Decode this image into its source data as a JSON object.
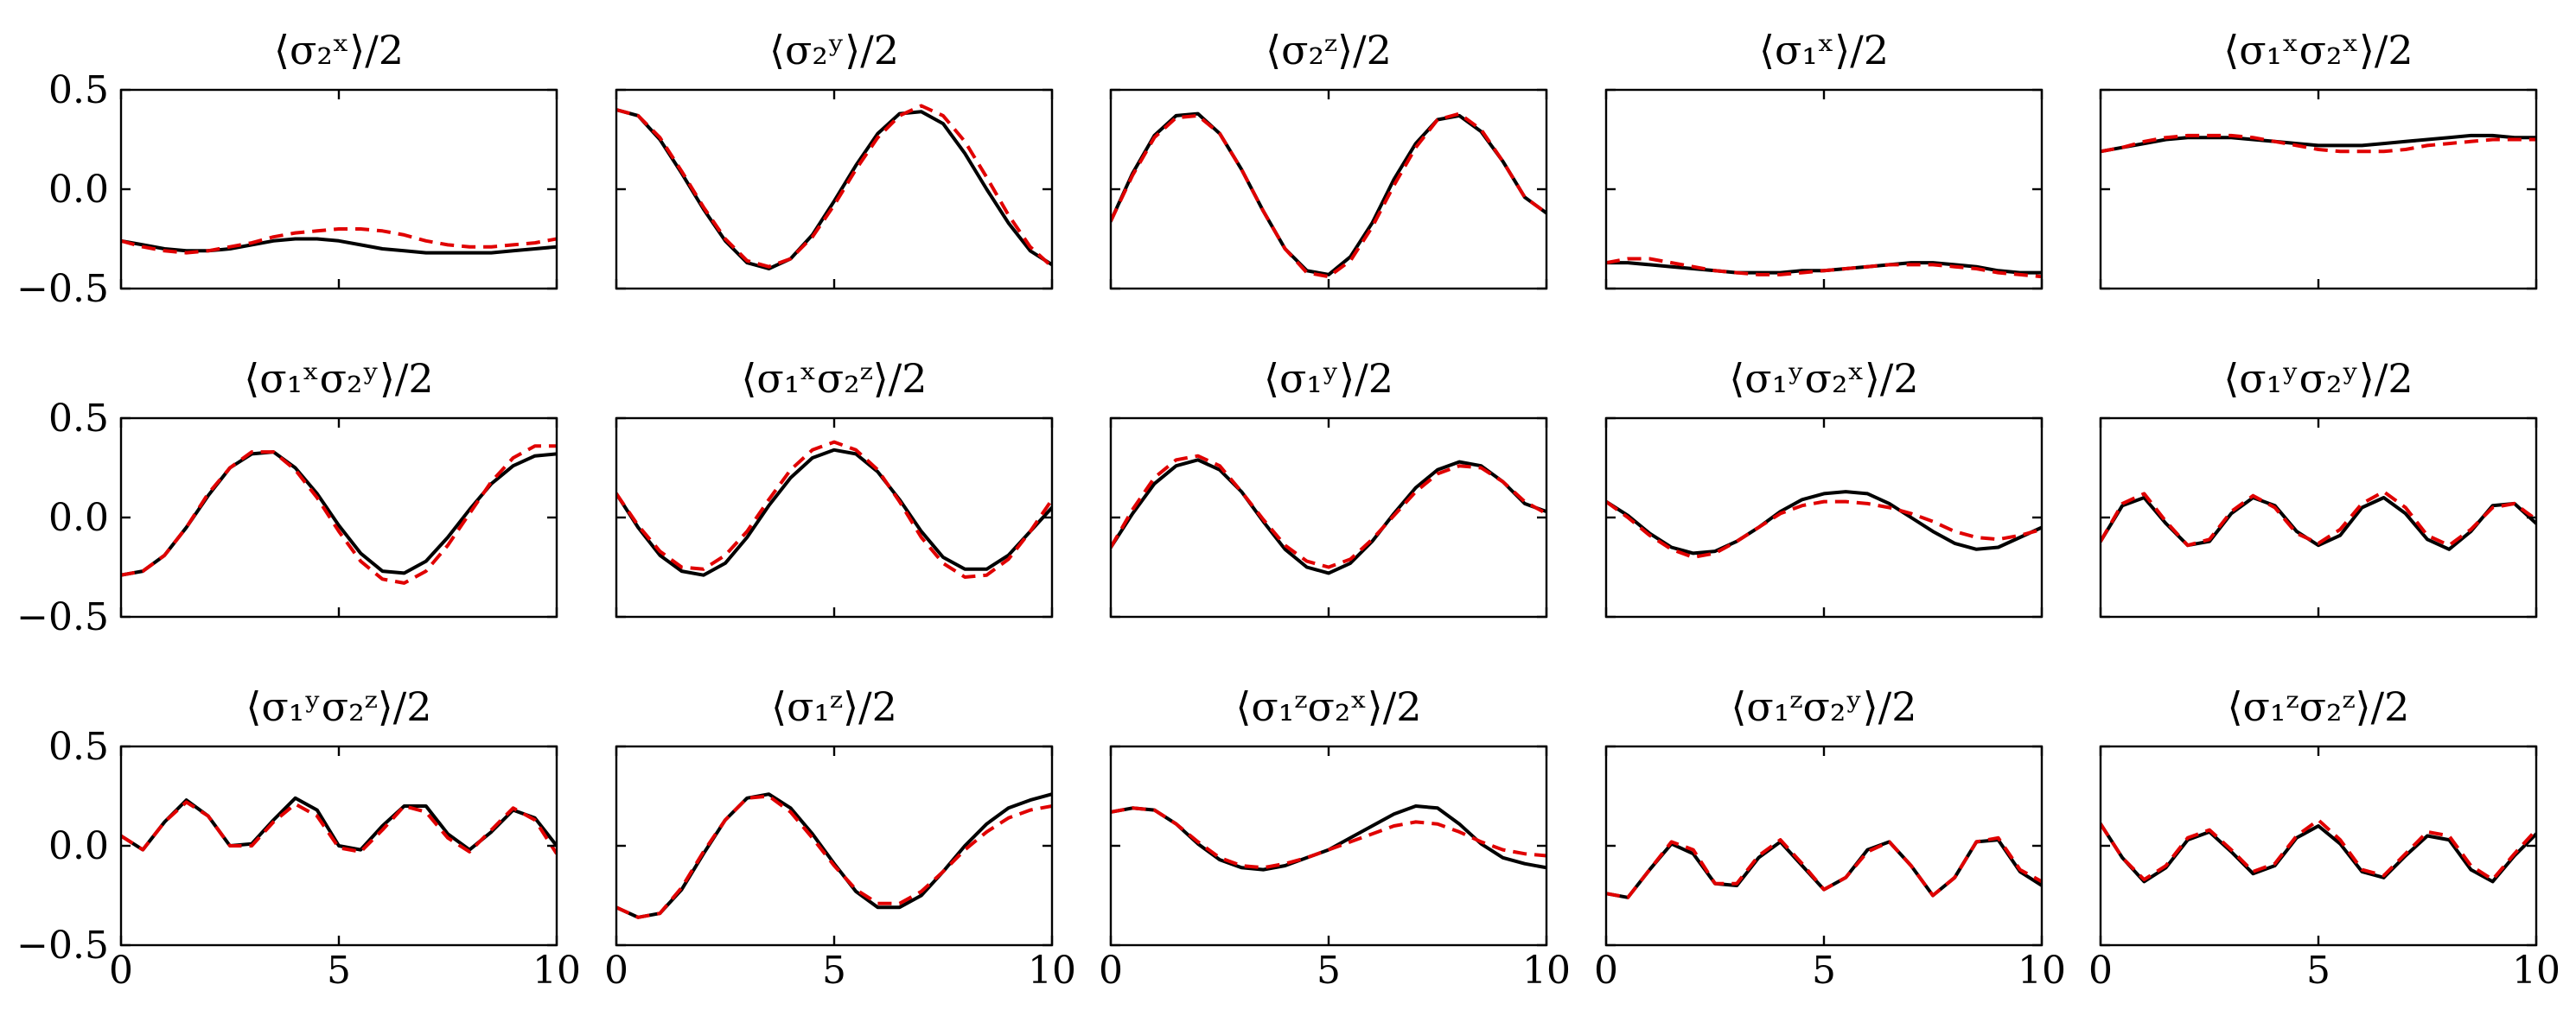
{
  "chart_data": {
    "type": "line",
    "grid": false,
    "xlim": [
      0,
      10
    ],
    "ylim": [
      -0.5,
      0.5
    ],
    "xticks": [
      0,
      5,
      10
    ],
    "yticks": [
      -0.5,
      0.0,
      0.5
    ],
    "xtick_labels": [
      "0",
      "5",
      "10"
    ],
    "ytick_labels": [
      "−0.5",
      "0.0",
      "0.5"
    ],
    "series_styles": [
      {
        "color": "#000000",
        "dash": "solid"
      },
      {
        "color": "#e00000",
        "dash": "dashed"
      }
    ],
    "x": [
      0,
      0.5,
      1,
      1.5,
      2,
      2.5,
      3,
      3.5,
      4,
      4.5,
      5,
      5.5,
      6,
      6.5,
      7,
      7.5,
      8,
      8.5,
      9,
      9.5,
      10
    ],
    "panels": [
      {
        "title": "⟨σ₂ˣ⟩/2",
        "series": [
          {
            "values": [
              -0.26,
              -0.28,
              -0.3,
              -0.31,
              -0.31,
              -0.3,
              -0.28,
              -0.26,
              -0.25,
              -0.25,
              -0.26,
              -0.28,
              -0.3,
              -0.31,
              -0.32,
              -0.32,
              -0.32,
              -0.32,
              -0.31,
              -0.3,
              -0.29
            ]
          },
          {
            "values": [
              -0.26,
              -0.29,
              -0.31,
              -0.32,
              -0.31,
              -0.29,
              -0.27,
              -0.24,
              -0.22,
              -0.21,
              -0.2,
              -0.2,
              -0.21,
              -0.23,
              -0.26,
              -0.28,
              -0.29,
              -0.29,
              -0.28,
              -0.27,
              -0.25
            ]
          }
        ]
      },
      {
        "title": "⟨σ₂ʸ⟩/2",
        "series": [
          {
            "values": [
              0.4,
              0.37,
              0.25,
              0.08,
              -0.1,
              -0.26,
              -0.37,
              -0.4,
              -0.35,
              -0.23,
              -0.06,
              0.12,
              0.28,
              0.38,
              0.39,
              0.33,
              0.18,
              0.0,
              -0.17,
              -0.31,
              -0.38
            ]
          },
          {
            "values": [
              0.4,
              0.37,
              0.26,
              0.09,
              -0.09,
              -0.25,
              -0.36,
              -0.39,
              -0.35,
              -0.24,
              -0.08,
              0.1,
              0.26,
              0.37,
              0.42,
              0.37,
              0.24,
              0.06,
              -0.13,
              -0.29,
              -0.39
            ]
          }
        ]
      },
      {
        "title": "⟨σ₂ᶻ⟩/2",
        "series": [
          {
            "values": [
              -0.16,
              0.08,
              0.27,
              0.37,
              0.38,
              0.28,
              0.1,
              -0.11,
              -0.3,
              -0.41,
              -0.43,
              -0.34,
              -0.17,
              0.05,
              0.23,
              0.35,
              0.37,
              0.29,
              0.14,
              -0.04,
              -0.12
            ]
          },
          {
            "values": [
              -0.16,
              0.07,
              0.26,
              0.36,
              0.37,
              0.28,
              0.1,
              -0.11,
              -0.3,
              -0.42,
              -0.44,
              -0.36,
              -0.19,
              0.02,
              0.21,
              0.35,
              0.38,
              0.3,
              0.14,
              -0.04,
              -0.12
            ]
          }
        ]
      },
      {
        "title": "⟨σ₁ˣ⟩/2",
        "series": [
          {
            "values": [
              -0.37,
              -0.37,
              -0.38,
              -0.39,
              -0.4,
              -0.41,
              -0.42,
              -0.42,
              -0.42,
              -0.41,
              -0.41,
              -0.4,
              -0.39,
              -0.38,
              -0.37,
              -0.37,
              -0.38,
              -0.39,
              -0.41,
              -0.42,
              -0.42
            ]
          },
          {
            "values": [
              -0.37,
              -0.35,
              -0.35,
              -0.37,
              -0.39,
              -0.41,
              -0.42,
              -0.43,
              -0.43,
              -0.42,
              -0.41,
              -0.4,
              -0.39,
              -0.38,
              -0.38,
              -0.38,
              -0.39,
              -0.4,
              -0.42,
              -0.43,
              -0.44
            ]
          }
        ]
      },
      {
        "title": "⟨σ₁ˣσ₂ˣ⟩/2",
        "series": [
          {
            "values": [
              0.19,
              0.21,
              0.23,
              0.25,
              0.26,
              0.26,
              0.26,
              0.25,
              0.24,
              0.23,
              0.22,
              0.22,
              0.22,
              0.23,
              0.24,
              0.25,
              0.26,
              0.27,
              0.27,
              0.26,
              0.26
            ]
          },
          {
            "values": [
              0.19,
              0.21,
              0.24,
              0.26,
              0.27,
              0.27,
              0.27,
              0.26,
              0.24,
              0.22,
              0.2,
              0.19,
              0.19,
              0.19,
              0.2,
              0.22,
              0.23,
              0.24,
              0.25,
              0.25,
              0.25
            ]
          }
        ]
      },
      {
        "title": "⟨σ₁ˣσ₂ʸ⟩/2",
        "series": [
          {
            "values": [
              -0.29,
              -0.27,
              -0.19,
              -0.05,
              0.11,
              0.25,
              0.32,
              0.33,
              0.25,
              0.12,
              -0.04,
              -0.18,
              -0.27,
              -0.28,
              -0.22,
              -0.1,
              0.04,
              0.17,
              0.26,
              0.31,
              0.32
            ]
          },
          {
            "values": [
              -0.29,
              -0.27,
              -0.19,
              -0.05,
              0.12,
              0.25,
              0.33,
              0.33,
              0.24,
              0.1,
              -0.07,
              -0.22,
              -0.31,
              -0.33,
              -0.27,
              -0.14,
              0.02,
              0.18,
              0.3,
              0.36,
              0.36
            ]
          }
        ]
      },
      {
        "title": "⟨σ₁ˣσ₂ᶻ⟩/2",
        "series": [
          {
            "values": [
              0.12,
              -0.05,
              -0.19,
              -0.27,
              -0.29,
              -0.23,
              -0.1,
              0.06,
              0.2,
              0.3,
              0.34,
              0.32,
              0.23,
              0.09,
              -0.07,
              -0.2,
              -0.26,
              -0.26,
              -0.19,
              -0.07,
              0.05
            ]
          },
          {
            "values": [
              0.12,
              -0.04,
              -0.17,
              -0.25,
              -0.26,
              -0.19,
              -0.07,
              0.09,
              0.24,
              0.34,
              0.38,
              0.34,
              0.24,
              0.08,
              -0.1,
              -0.23,
              -0.3,
              -0.29,
              -0.21,
              -0.07,
              0.09
            ]
          }
        ]
      },
      {
        "title": "⟨σ₁ʸ⟩/2",
        "series": [
          {
            "values": [
              -0.15,
              0.02,
              0.17,
              0.26,
              0.29,
              0.24,
              0.13,
              -0.02,
              -0.16,
              -0.25,
              -0.28,
              -0.23,
              -0.12,
              0.02,
              0.15,
              0.24,
              0.28,
              0.26,
              0.18,
              0.07,
              0.03
            ]
          },
          {
            "values": [
              -0.15,
              0.04,
              0.2,
              0.29,
              0.31,
              0.26,
              0.13,
              -0.01,
              -0.14,
              -0.22,
              -0.25,
              -0.21,
              -0.11,
              0.01,
              0.13,
              0.22,
              0.26,
              0.25,
              0.18,
              0.08,
              0.02
            ]
          }
        ]
      },
      {
        "title": "⟨σ₁ʸσ₂ˣ⟩/2",
        "series": [
          {
            "values": [
              0.08,
              0.01,
              -0.08,
              -0.15,
              -0.18,
              -0.17,
              -0.12,
              -0.05,
              0.03,
              0.09,
              0.12,
              0.13,
              0.12,
              0.07,
              0.0,
              -0.07,
              -0.13,
              -0.16,
              -0.15,
              -0.1,
              -0.05
            ]
          },
          {
            "values": [
              0.08,
              0.0,
              -0.09,
              -0.16,
              -0.2,
              -0.18,
              -0.12,
              -0.05,
              0.02,
              0.06,
              0.08,
              0.08,
              0.07,
              0.05,
              0.02,
              -0.02,
              -0.07,
              -0.1,
              -0.11,
              -0.09,
              -0.06
            ]
          }
        ]
      },
      {
        "title": "⟨σ₁ʸσ₂ʸ⟩/2",
        "series": [
          {
            "values": [
              -0.12,
              0.06,
              0.1,
              -0.03,
              -0.14,
              -0.12,
              0.02,
              0.1,
              0.06,
              -0.07,
              -0.14,
              -0.09,
              0.05,
              0.1,
              0.02,
              -0.11,
              -0.16,
              -0.07,
              0.06,
              0.07,
              -0.03
            ]
          },
          {
            "values": [
              -0.12,
              0.07,
              0.12,
              -0.02,
              -0.14,
              -0.11,
              0.03,
              0.11,
              0.05,
              -0.08,
              -0.13,
              -0.06,
              0.07,
              0.13,
              0.05,
              -0.09,
              -0.14,
              -0.06,
              0.05,
              0.07,
              -0.01
            ]
          }
        ]
      },
      {
        "title": "⟨σ₁ʸσ₂ᶻ⟩/2",
        "series": [
          {
            "values": [
              0.05,
              -0.02,
              0.12,
              0.23,
              0.15,
              0.0,
              0.01,
              0.13,
              0.24,
              0.18,
              0.0,
              -0.02,
              0.1,
              0.2,
              0.2,
              0.06,
              -0.02,
              0.07,
              0.18,
              0.14,
              0.0
            ]
          },
          {
            "values": [
              0.05,
              -0.02,
              0.12,
              0.22,
              0.15,
              0.0,
              0.0,
              0.12,
              0.21,
              0.15,
              -0.01,
              -0.03,
              0.08,
              0.2,
              0.17,
              0.04,
              -0.03,
              0.08,
              0.19,
              0.13,
              -0.04
            ]
          }
        ]
      },
      {
        "title": "⟨σ₁ᶻ⟩/2",
        "series": [
          {
            "values": [
              -0.31,
              -0.36,
              -0.34,
              -0.22,
              -0.04,
              0.13,
              0.24,
              0.26,
              0.19,
              0.06,
              -0.09,
              -0.23,
              -0.31,
              -0.31,
              -0.25,
              -0.13,
              0.0,
              0.11,
              0.19,
              0.23,
              0.26
            ]
          },
          {
            "values": [
              -0.31,
              -0.36,
              -0.34,
              -0.21,
              -0.03,
              0.13,
              0.24,
              0.25,
              0.17,
              0.04,
              -0.1,
              -0.22,
              -0.29,
              -0.29,
              -0.23,
              -0.13,
              -0.02,
              0.07,
              0.14,
              0.18,
              0.2
            ]
          }
        ]
      },
      {
        "title": "⟨σ₁ᶻσ₂ˣ⟩/2",
        "series": [
          {
            "values": [
              0.17,
              0.19,
              0.18,
              0.11,
              0.01,
              -0.07,
              -0.11,
              -0.12,
              -0.1,
              -0.06,
              -0.02,
              0.04,
              0.1,
              0.16,
              0.2,
              0.19,
              0.11,
              0.01,
              -0.06,
              -0.09,
              -0.11
            ]
          },
          {
            "values": [
              0.17,
              0.19,
              0.18,
              0.11,
              0.02,
              -0.06,
              -0.1,
              -0.11,
              -0.09,
              -0.06,
              -0.02,
              0.02,
              0.06,
              0.1,
              0.12,
              0.11,
              0.07,
              0.02,
              -0.02,
              -0.04,
              -0.05
            ]
          }
        ]
      },
      {
        "title": "⟨σ₁ᶻσ₂ʸ⟩/2",
        "series": [
          {
            "values": [
              -0.24,
              -0.26,
              -0.12,
              0.01,
              -0.04,
              -0.19,
              -0.2,
              -0.06,
              0.02,
              -0.1,
              -0.22,
              -0.16,
              -0.02,
              0.02,
              -0.1,
              -0.25,
              -0.16,
              0.02,
              0.03,
              -0.13,
              -0.2
            ]
          },
          {
            "values": [
              -0.24,
              -0.26,
              -0.12,
              0.02,
              -0.02,
              -0.19,
              -0.19,
              -0.05,
              0.03,
              -0.09,
              -0.22,
              -0.16,
              -0.03,
              0.02,
              -0.1,
              -0.25,
              -0.16,
              0.02,
              0.04,
              -0.12,
              -0.18
            ]
          }
        ]
      },
      {
        "title": "⟨σ₁ᶻσ₂ᶻ⟩/2",
        "series": [
          {
            "values": [
              0.11,
              -0.06,
              -0.18,
              -0.11,
              0.03,
              0.07,
              -0.03,
              -0.14,
              -0.1,
              0.04,
              0.1,
              0.01,
              -0.13,
              -0.16,
              -0.05,
              0.05,
              0.03,
              -0.12,
              -0.18,
              -0.05,
              0.06
            ]
          },
          {
            "values": [
              0.11,
              -0.06,
              -0.17,
              -0.1,
              0.04,
              0.08,
              -0.02,
              -0.13,
              -0.09,
              0.05,
              0.13,
              0.03,
              -0.12,
              -0.15,
              -0.04,
              0.07,
              0.05,
              -0.1,
              -0.17,
              -0.04,
              0.08
            ]
          }
        ]
      }
    ]
  }
}
